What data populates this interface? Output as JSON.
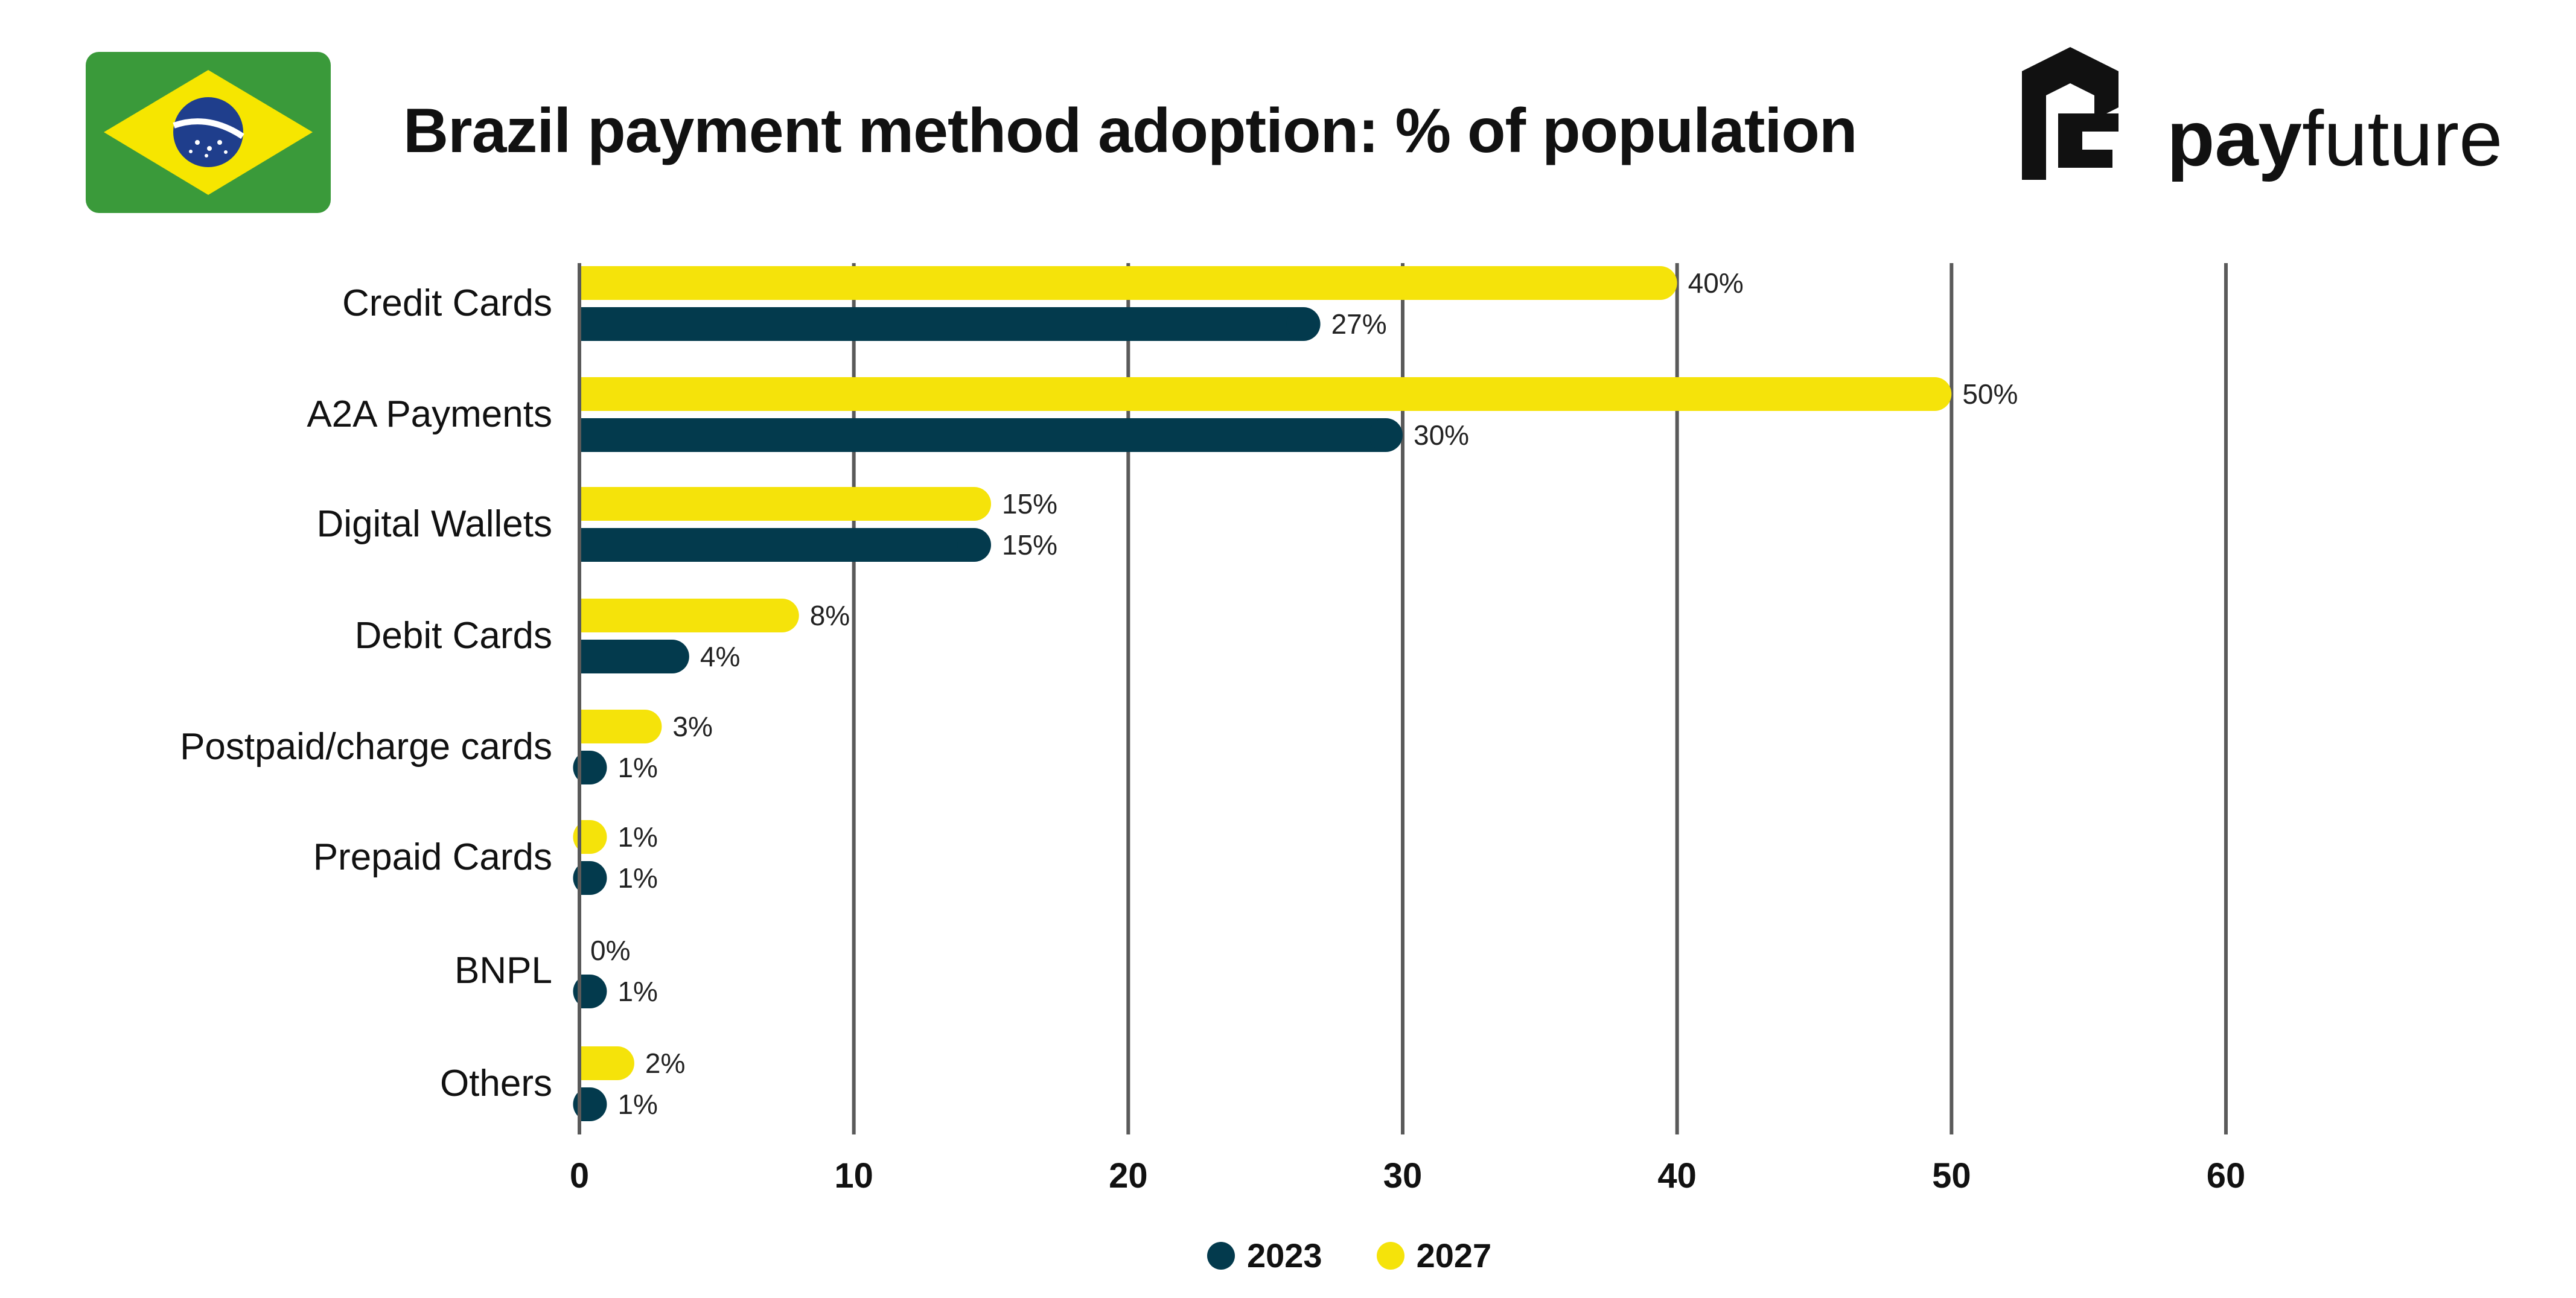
{
  "header": {
    "title": "Brazil payment method adoption: % of population",
    "logo": {
      "bold": "pay",
      "light": "future"
    },
    "flag_icon": "brazil-flag-icon"
  },
  "colors": {
    "series_2023": "#033a4d",
    "series_2027": "#f5e30a",
    "grid": "#5a5a5a",
    "flag_green": "#3a9a3a",
    "flag_yellow": "#f6e600",
    "flag_blue": "#1f3e8c"
  },
  "chart_data": {
    "type": "bar",
    "orientation": "horizontal",
    "categories": [
      "Credit Cards",
      "A2A Payments",
      "Digital Wallets",
      "Debit Cards",
      "Postpaid/charge cards",
      "Prepaid Cards",
      "BNPL",
      "Others"
    ],
    "series": [
      {
        "name": "2027",
        "values": [
          40,
          50,
          15,
          8,
          3,
          1,
          0,
          2
        ],
        "labels": [
          "40%",
          "50%",
          "15%",
          "8%",
          "3%",
          "1%",
          "0%",
          "2%"
        ]
      },
      {
        "name": "2023",
        "values": [
          27,
          30,
          15,
          4,
          1,
          1,
          1,
          1
        ],
        "labels": [
          "27%",
          "30%",
          "15%",
          "4%",
          "1%",
          "1%",
          "1%",
          "1%"
        ]
      }
    ],
    "xlim": [
      0,
      60
    ],
    "xticks": [
      "0",
      "10",
      "20",
      "30",
      "40",
      "50",
      "60"
    ],
    "grid": true,
    "legend": {
      "position": "bottom",
      "entries": [
        "2023",
        "2027"
      ]
    }
  }
}
